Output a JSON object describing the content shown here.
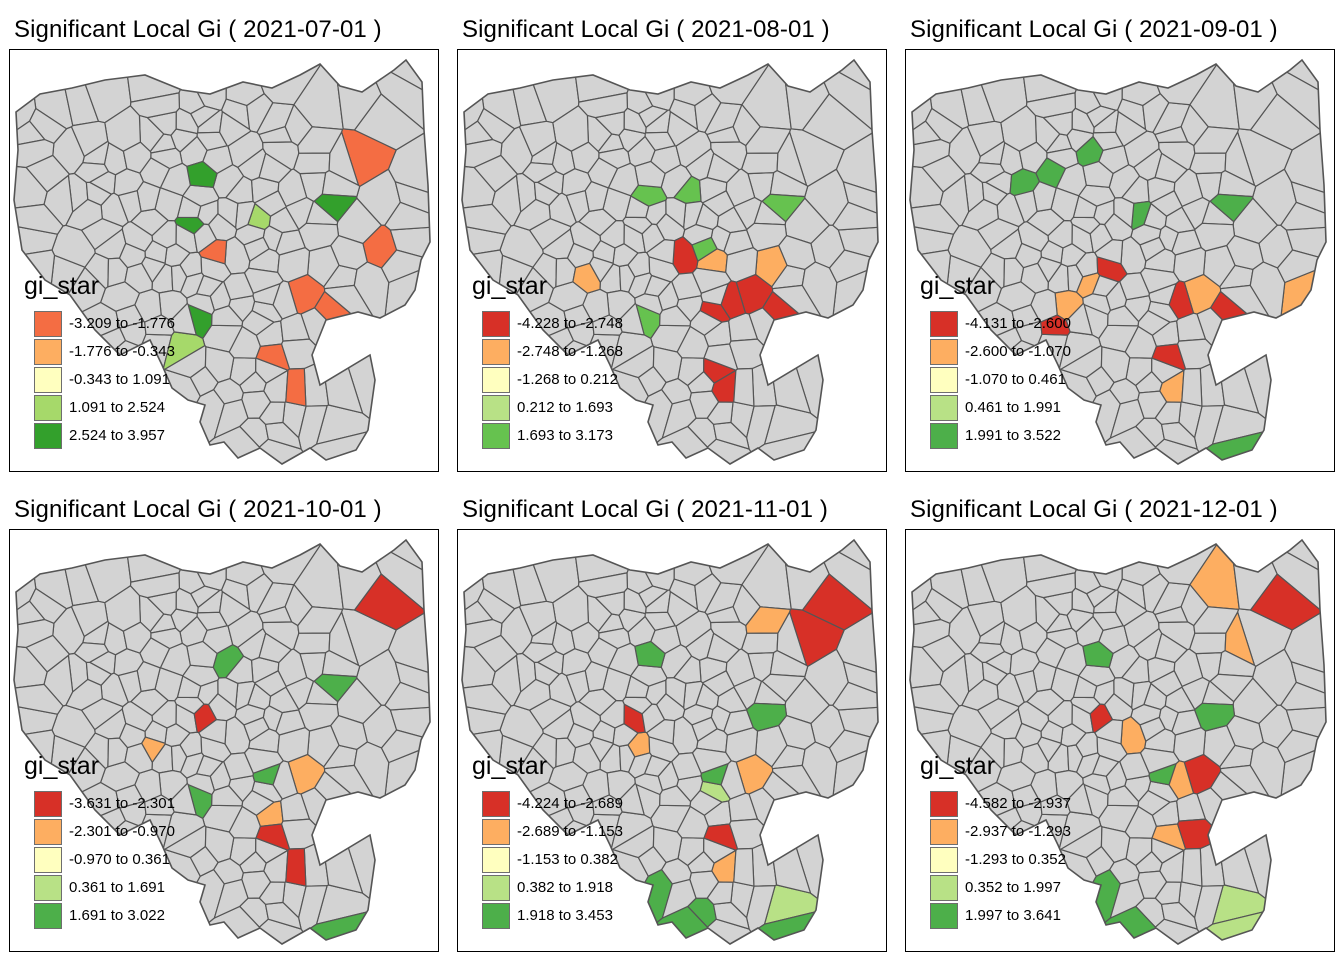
{
  "panels": [
    {
      "title": "Significant Local Gi ( 2021-07-01 )",
      "legend": {
        "title": "gi_star",
        "items": [
          {
            "label": "-3.209 to -1.776",
            "color": "#f46d43"
          },
          {
            "label": "-1.776 to -0.343",
            "color": "#fdae61"
          },
          {
            "label": "-0.343 to 1.091",
            "color": "#ffffbf"
          },
          {
            "label": "1.091 to 2.524",
            "color": "#a6d96a"
          },
          {
            "label": "2.524 to 3.957",
            "color": "#33a02c"
          }
        ]
      }
    },
    {
      "title": "Significant Local Gi ( 2021-08-01 )",
      "legend": {
        "title": "gi_star",
        "items": [
          {
            "label": "-4.228 to -2.748",
            "color": "#d73027"
          },
          {
            "label": "-2.748 to -1.268",
            "color": "#fdae61"
          },
          {
            "label": "-1.268 to 0.212",
            "color": "#ffffbf"
          },
          {
            "label": "0.212 to 1.693",
            "color": "#b8e186"
          },
          {
            "label": "1.693 to 3.173",
            "color": "#66c24f"
          }
        ]
      }
    },
    {
      "title": "Significant Local Gi ( 2021-09-01 )",
      "legend": {
        "title": "gi_star",
        "items": [
          {
            "label": "-4.131 to -2.600",
            "color": "#d73027"
          },
          {
            "label": "-2.600 to -1.070",
            "color": "#fdae61"
          },
          {
            "label": "-1.070 to 0.461",
            "color": "#ffffbf"
          },
          {
            "label": "0.461 to 1.991",
            "color": "#b8e186"
          },
          {
            "label": "1.991 to 3.522",
            "color": "#4daf4a"
          }
        ]
      }
    },
    {
      "title": "Significant Local Gi ( 2021-10-01 )",
      "legend": {
        "title": "gi_star",
        "items": [
          {
            "label": "-3.631 to -2.301",
            "color": "#d73027"
          },
          {
            "label": "-2.301 to -0.970",
            "color": "#fdae61"
          },
          {
            "label": "-0.970 to 0.361",
            "color": "#ffffbf"
          },
          {
            "label": "0.361 to 1.691",
            "color": "#b8e186"
          },
          {
            "label": "1.691 to 3.022",
            "color": "#4daf4a"
          }
        ]
      }
    },
    {
      "title": "Significant Local Gi ( 2021-11-01 )",
      "legend": {
        "title": "gi_star",
        "items": [
          {
            "label": "-4.224 to -2.689",
            "color": "#d73027"
          },
          {
            "label": "-2.689 to -1.153",
            "color": "#fdae61"
          },
          {
            "label": "-1.153 to 0.382",
            "color": "#ffffbf"
          },
          {
            "label": "0.382 to 1.918",
            "color": "#b8e186"
          },
          {
            "label": "1.918 to 3.453",
            "color": "#4daf4a"
          }
        ]
      }
    },
    {
      "title": "Significant Local Gi ( 2021-12-01 )",
      "legend": {
        "title": "gi_star",
        "items": [
          {
            "label": "-4.582 to -2.937",
            "color": "#d73027"
          },
          {
            "label": "-2.937 to -1.293",
            "color": "#fdae61"
          },
          {
            "label": "-1.293 to 0.352",
            "color": "#ffffbf"
          },
          {
            "label": "0.352 to 1.997",
            "color": "#b8e186"
          },
          {
            "label": "1.997 to 3.641",
            "color": "#4daf4a"
          }
        ]
      }
    }
  ],
  "colors": {
    "no_data": "#d3d3d3",
    "border": "#555555"
  }
}
